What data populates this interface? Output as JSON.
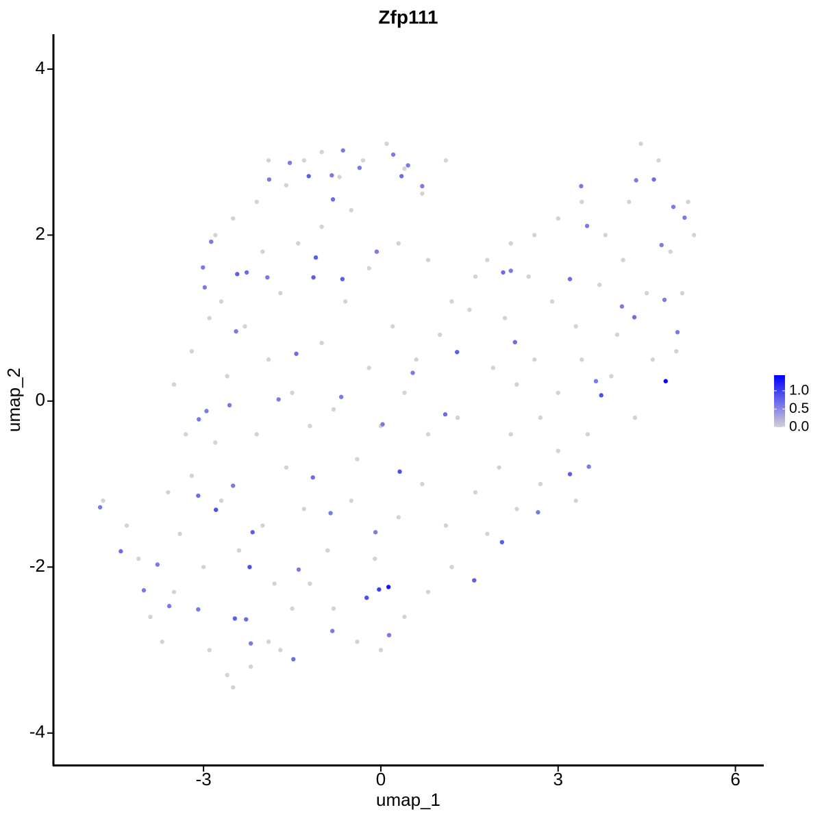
{
  "chart_data": {
    "type": "scatter",
    "title": "Zfp111",
    "xlabel": "umap_1",
    "ylabel": "umap_2",
    "xlim": [
      -5.54,
      6.48
    ],
    "ylim": [
      -4.39,
      4.42
    ],
    "xticks": [
      -3,
      0,
      3,
      6
    ],
    "yticks": [
      -4,
      -2,
      0,
      2,
      4
    ],
    "low_color": "#d3d3d3",
    "high_color": "#0000ff",
    "colorlim": [
      0,
      1.43
    ],
    "colorticks": [
      {
        "value": 0,
        "label": "0.0"
      },
      {
        "value": 0.5,
        "label": "0.5"
      },
      {
        "value": 1,
        "label": "1.0"
      }
    ],
    "x": [
      -4.7,
      -4.3,
      -4.1,
      -3.9,
      -3.7,
      -3.5,
      -3.4,
      -3.6,
      -3.3,
      -3.5,
      -3.2,
      -3.0,
      -2.9,
      -2.6,
      -2.5,
      -2.2,
      -1.9,
      -1.7,
      -1.5,
      -1.8,
      -2.0,
      -2.4,
      -2.7,
      -2.8,
      -2.6,
      -2.3,
      -2.7,
      -2.9,
      -3.2,
      -2.8,
      -2.5,
      -2.1,
      -1.9,
      -1.6,
      -1.3,
      -1.0,
      -0.7,
      -0.3,
      0.1,
      0.4,
      0.7,
      1.1,
      -2.0,
      -1.7,
      -1.4,
      -1.0,
      -0.5,
      -0.2,
      0.3,
      0.8,
      1.2,
      -1.9,
      -1.5,
      -1.0,
      -0.6,
      -0.2,
      0.2,
      0.6,
      1.0,
      1.5,
      -2.1,
      -1.6,
      -1.2,
      -0.8,
      -0.4,
      0.0,
      0.4,
      0.8,
      1.3,
      -1.3,
      -0.9,
      -0.5,
      -0.1,
      0.3,
      0.7,
      1.1,
      1.6,
      2.0,
      -1.2,
      -0.8,
      -0.4,
      0.0,
      0.4,
      0.8,
      1.2,
      1.8,
      2.3,
      2.7,
      3.0,
      3.3,
      3.5,
      3.9,
      4.3,
      4.6,
      5.0,
      5.1,
      4.9,
      5.3,
      5.2,
      4.7,
      4.4,
      4.2,
      3.8,
      3.4,
      3.0,
      2.6,
      2.2,
      1.8,
      1.6,
      2.1,
      2.5,
      2.9,
      3.3,
      3.7,
      4.1,
      4.5,
      2.6,
      3.0,
      3.4,
      4.0,
      2.3,
      1.9,
      2.2,
      2.7,
      -4.75,
      -4.4,
      -3.78,
      -4.01,
      -3.58,
      -3.09,
      -2.95,
      -3.08,
      -3.09,
      -2.79,
      -2.98,
      -3.01,
      -2.87,
      -2.43,
      -2.27,
      -2.45,
      -2.56,
      -2.5,
      -2.17,
      -2.22,
      -2.47,
      -2.28,
      -2.2,
      -1.48,
      -1.92,
      -1.89,
      -1.54,
      -1.22,
      -1.1,
      -1.14,
      -1.43,
      -1.73,
      -1.15,
      -0.85,
      -1.39,
      -0.82,
      -0.67,
      -0.65,
      -0.81,
      -0.83,
      -0.64,
      -0.36,
      -0.07,
      0.03,
      0.32,
      0.13,
      -0.03,
      -0.24,
      -0.09,
      0.14,
      0.21,
      0.46,
      0.35,
      0.7,
      0.54,
      1.09,
      1.29,
      1.58,
      2.05,
      2.27,
      2.2,
      2.07,
      2.66,
      3.2,
      3.52,
      3.64,
      3.73,
      4.08,
      4.29,
      3.2,
      3.49,
      3.39,
      4.32,
      4.62,
      4.82,
      5.02,
      4.95,
      5.14,
      4.75,
      4.8
    ],
    "y": [
      -1.2,
      -1.5,
      -1.9,
      -2.6,
      -2.9,
      -2.3,
      -1.6,
      -1.1,
      -0.4,
      0.2,
      -0.9,
      -2.0,
      -3.0,
      -3.3,
      -3.45,
      -3.2,
      -2.9,
      -3.0,
      -2.5,
      -2.2,
      -1.5,
      -1.8,
      -1.2,
      -0.5,
      0.3,
      0.9,
      1.2,
      1.0,
      0.6,
      2.0,
      2.2,
      2.4,
      2.9,
      2.6,
      2.9,
      3.0,
      2.7,
      2.9,
      3.1,
      2.8,
      2.5,
      2.9,
      1.8,
      1.3,
      1.9,
      2.1,
      2.3,
      1.6,
      1.9,
      1.7,
      1.2,
      0.5,
      0.1,
      0.7,
      1.2,
      0.4,
      0.9,
      0.5,
      0.8,
      1.1,
      -0.4,
      -0.8,
      -0.3,
      -0.1,
      -0.7,
      -0.3,
      0.1,
      -0.4,
      -0.2,
      -1.3,
      -1.8,
      -1.2,
      -1.9,
      -1.4,
      -1.0,
      -1.5,
      -1.1,
      -0.8,
      -2.2,
      -2.5,
      -2.9,
      -3.0,
      -2.6,
      -2.3,
      -2.0,
      -1.6,
      -1.3,
      -1.0,
      -0.6,
      -1.2,
      -0.4,
      0.3,
      -0.2,
      0.5,
      0.6,
      1.3,
      1.8,
      2.0,
      2.4,
      2.9,
      3.1,
      2.4,
      2.0,
      2.4,
      2.2,
      2.0,
      1.9,
      1.7,
      1.5,
      1.0,
      1.5,
      1.2,
      0.9,
      1.4,
      1.7,
      1.3,
      0.5,
      0.1,
      0.5,
      0.8,
      0.2,
      0.4,
      -0.4,
      -0.2,
      -1.28,
      -1.81,
      -1.97,
      -2.28,
      -2.47,
      -2.51,
      -0.12,
      -0.22,
      -1.14,
      -1.31,
      1.37,
      1.61,
      1.92,
      1.53,
      1.55,
      0.84,
      -0.05,
      -1.02,
      -1.58,
      -2.0,
      -2.62,
      -2.63,
      -2.92,
      -3.11,
      1.49,
      2.67,
      2.87,
      2.71,
      1.73,
      1.49,
      0.57,
      0.02,
      -0.92,
      -1.35,
      -2.03,
      -2.77,
      0.05,
      1.47,
      2.43,
      2.72,
      3.02,
      2.81,
      1.8,
      -0.28,
      -0.85,
      -2.24,
      -2.27,
      -2.37,
      -1.58,
      -2.82,
      2.97,
      2.84,
      2.71,
      2.59,
      0.34,
      -0.16,
      0.59,
      -2.16,
      -1.7,
      0.71,
      1.57,
      1.55,
      -1.34,
      -0.88,
      -0.79,
      0.24,
      0.07,
      1.14,
      1.01,
      1.47,
      2.11,
      2.59,
      2.66,
      2.67,
      0.24,
      0.83,
      2.34,
      2.21,
      1.88,
      1.22
    ],
    "values": [
      0,
      0,
      0,
      0,
      0,
      0,
      0,
      0,
      0,
      0,
      0,
      0,
      0,
      0,
      0,
      0,
      0,
      0,
      0,
      0,
      0,
      0,
      0,
      0,
      0,
      0,
      0,
      0,
      0,
      0,
      0,
      0,
      0,
      0,
      0,
      0,
      0,
      0,
      0,
      0,
      0,
      0,
      0,
      0,
      0,
      0,
      0,
      0,
      0,
      0,
      0,
      0,
      0,
      0,
      0,
      0,
      0,
      0,
      0,
      0,
      0,
      0,
      0,
      0,
      0,
      0,
      0,
      0,
      0,
      0,
      0,
      0,
      0,
      0,
      0,
      0,
      0,
      0,
      0,
      0,
      0,
      0,
      0,
      0,
      0,
      0,
      0,
      0,
      0,
      0,
      0,
      0,
      0,
      0,
      0,
      0,
      0,
      0,
      0,
      0,
      0,
      0,
      0,
      0,
      0,
      0,
      0,
      0,
      0,
      0,
      0,
      0,
      0,
      0,
      0,
      0,
      0,
      0,
      0,
      0,
      0,
      0,
      0,
      0,
      0.6,
      0.7,
      0.6,
      0.6,
      0.6,
      0.6,
      0.6,
      0.6,
      0.7,
      0.9,
      0.6,
      0.6,
      0.6,
      0.8,
      0.7,
      0.6,
      0.6,
      0.6,
      0.8,
      0.9,
      0.8,
      0.7,
      0.6,
      0.7,
      0.6,
      0.6,
      0.6,
      0.8,
      0.8,
      0.8,
      0.7,
      0.6,
      0.7,
      0.6,
      0.6,
      0.6,
      0.6,
      0.8,
      0.7,
      0.6,
      0.6,
      0.6,
      0.6,
      0.6,
      0.9,
      1.3,
      1.0,
      0.9,
      0.6,
      0.6,
      0.6,
      0.6,
      0.7,
      0.6,
      0.6,
      0.7,
      0.8,
      0.8,
      0.8,
      0.7,
      0.6,
      0.7,
      0.6,
      0.8,
      0.6,
      0.6,
      0.9,
      0.6,
      0.7,
      0.7,
      0.6,
      0.6,
      0.6,
      0.7,
      1.4,
      0.6,
      0.6,
      0.6,
      0.6,
      0.6
    ]
  }
}
